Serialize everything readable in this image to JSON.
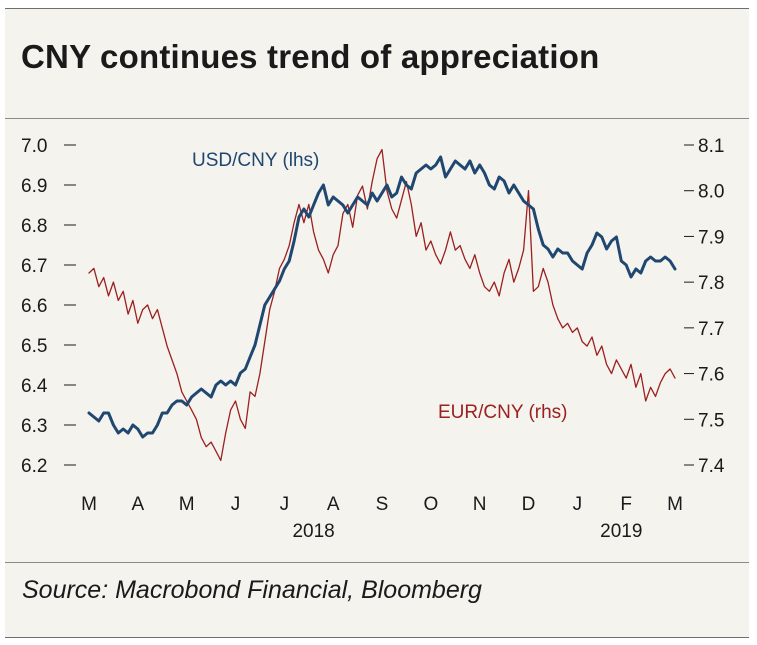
{
  "title": "CNY continues trend of appreciation",
  "source": "Source: Macrobond Financial, Bloomberg",
  "colors": {
    "usd": "#1f4770",
    "eur": "#9b2020",
    "background": "#f4f3ee"
  },
  "chart_data": {
    "type": "line",
    "title": "CNY continues trend of appreciation",
    "x_months": [
      "M",
      "A",
      "M",
      "J",
      "J",
      "A",
      "S",
      "O",
      "N",
      "D",
      "J",
      "F",
      "M"
    ],
    "x_years": [
      "2018",
      "2019"
    ],
    "x_range": [
      "2018-03-01",
      "2019-03-08"
    ],
    "y_left": {
      "label": "USD/CNY (lhs)",
      "ylim": [
        6.2,
        7.0
      ],
      "ticks": [
        "7.0",
        "6.9",
        "6.8",
        "6.7",
        "6.6",
        "6.5",
        "6.4",
        "6.3",
        "6.2"
      ]
    },
    "y_right": {
      "label": "EUR/CNY (rhs)",
      "ylim": [
        7.4,
        8.1
      ],
      "ticks": [
        "8.1",
        "8.0",
        "7.9",
        "7.8",
        "7.7",
        "7.6",
        "7.5",
        "7.4"
      ]
    },
    "series": [
      {
        "name": "USD/CNY (lhs)",
        "axis": "left",
        "x": [
          0,
          0.1,
          0.2,
          0.3,
          0.4,
          0.5,
          0.6,
          0.7,
          0.8,
          0.9,
          1.0,
          1.1,
          1.2,
          1.3,
          1.4,
          1.5,
          1.6,
          1.7,
          1.8,
          1.9,
          2.0,
          2.1,
          2.2,
          2.3,
          2.4,
          2.5,
          2.6,
          2.7,
          2.8,
          2.9,
          3.0,
          3.1,
          3.2,
          3.3,
          3.4,
          3.5,
          3.6,
          3.7,
          3.8,
          3.9,
          4.0,
          4.1,
          4.2,
          4.3,
          4.4,
          4.5,
          4.6,
          4.7,
          4.8,
          4.9,
          5.0,
          5.1,
          5.2,
          5.3,
          5.4,
          5.5,
          5.6,
          5.7,
          5.8,
          5.9,
          6.0,
          6.1,
          6.2,
          6.3,
          6.4,
          6.5,
          6.6,
          6.7,
          6.8,
          6.9,
          7.0,
          7.1,
          7.2,
          7.3,
          7.4,
          7.5,
          7.6,
          7.7,
          7.8,
          7.9,
          8.0,
          8.1,
          8.2,
          8.3,
          8.4,
          8.5,
          8.6,
          8.7,
          8.8,
          8.9,
          9.0,
          9.1,
          9.2,
          9.3,
          9.4,
          9.5,
          9.6,
          9.7,
          9.8,
          9.9,
          10.0,
          10.1,
          10.2,
          10.3,
          10.4,
          10.5,
          10.6,
          10.7,
          10.8,
          10.9,
          11.0,
          11.1,
          11.2,
          11.3,
          11.4,
          11.5,
          11.6,
          11.7,
          11.8,
          11.9,
          12.0
        ],
        "values": [
          6.33,
          6.32,
          6.31,
          6.33,
          6.33,
          6.3,
          6.28,
          6.29,
          6.28,
          6.3,
          6.29,
          6.27,
          6.28,
          6.28,
          6.3,
          6.33,
          6.33,
          6.35,
          6.36,
          6.36,
          6.35,
          6.37,
          6.38,
          6.39,
          6.38,
          6.37,
          6.4,
          6.41,
          6.4,
          6.41,
          6.4,
          6.43,
          6.44,
          6.47,
          6.5,
          6.55,
          6.6,
          6.62,
          6.64,
          6.66,
          6.69,
          6.71,
          6.76,
          6.82,
          6.84,
          6.82,
          6.85,
          6.88,
          6.9,
          6.85,
          6.87,
          6.86,
          6.85,
          6.83,
          6.85,
          6.87,
          6.86,
          6.85,
          6.88,
          6.86,
          6.88,
          6.9,
          6.87,
          6.88,
          6.92,
          6.9,
          6.89,
          6.93,
          6.94,
          6.95,
          6.94,
          6.95,
          6.97,
          6.92,
          6.94,
          6.96,
          6.95,
          6.94,
          6.96,
          6.93,
          6.95,
          6.93,
          6.9,
          6.89,
          6.92,
          6.91,
          6.88,
          6.9,
          6.88,
          6.86,
          6.85,
          6.84,
          6.79,
          6.75,
          6.74,
          6.72,
          6.74,
          6.73,
          6.73,
          6.71,
          6.7,
          6.69,
          6.73,
          6.75,
          6.78,
          6.77,
          6.74,
          6.76,
          6.77,
          6.71,
          6.7,
          6.67,
          6.69,
          6.68,
          6.71,
          6.72,
          6.71,
          6.71,
          6.72,
          6.71,
          6.69
        ]
      },
      {
        "name": "EUR/CNY (rhs)",
        "axis": "right",
        "x": [
          0,
          0.1,
          0.2,
          0.3,
          0.4,
          0.5,
          0.6,
          0.7,
          0.8,
          0.9,
          1.0,
          1.1,
          1.2,
          1.3,
          1.4,
          1.5,
          1.6,
          1.7,
          1.8,
          1.9,
          2.0,
          2.1,
          2.2,
          2.3,
          2.4,
          2.5,
          2.6,
          2.7,
          2.8,
          2.9,
          3.0,
          3.1,
          3.2,
          3.3,
          3.4,
          3.5,
          3.6,
          3.7,
          3.8,
          3.9,
          4.0,
          4.1,
          4.2,
          4.3,
          4.4,
          4.5,
          4.6,
          4.7,
          4.8,
          4.9,
          5.0,
          5.1,
          5.2,
          5.3,
          5.4,
          5.5,
          5.6,
          5.7,
          5.8,
          5.9,
          6.0,
          6.1,
          6.2,
          6.3,
          6.4,
          6.5,
          6.6,
          6.7,
          6.8,
          6.9,
          7.0,
          7.1,
          7.2,
          7.3,
          7.4,
          7.5,
          7.6,
          7.7,
          7.8,
          7.9,
          8.0,
          8.1,
          8.2,
          8.3,
          8.4,
          8.5,
          8.6,
          8.7,
          8.8,
          8.9,
          9.0,
          9.1,
          9.2,
          9.3,
          9.4,
          9.5,
          9.6,
          9.7,
          9.8,
          9.9,
          10.0,
          10.1,
          10.2,
          10.3,
          10.4,
          10.5,
          10.6,
          10.7,
          10.8,
          10.9,
          11.0,
          11.1,
          11.2,
          11.3,
          11.4,
          11.5,
          11.6,
          11.7,
          11.8,
          11.9,
          12.0
        ],
        "values": [
          7.82,
          7.83,
          7.79,
          7.81,
          7.77,
          7.8,
          7.76,
          7.78,
          7.73,
          7.76,
          7.71,
          7.74,
          7.75,
          7.72,
          7.74,
          7.7,
          7.66,
          7.63,
          7.6,
          7.56,
          7.54,
          7.52,
          7.5,
          7.46,
          7.44,
          7.45,
          7.43,
          7.41,
          7.47,
          7.52,
          7.54,
          7.5,
          7.48,
          7.56,
          7.55,
          7.6,
          7.67,
          7.74,
          7.78,
          7.83,
          7.85,
          7.88,
          7.93,
          7.97,
          7.93,
          7.97,
          7.91,
          7.87,
          7.85,
          7.82,
          7.86,
          7.88,
          7.95,
          7.97,
          7.92,
          7.99,
          8.01,
          7.96,
          8.02,
          8.07,
          8.09,
          8.0,
          7.96,
          7.94,
          7.98,
          8.02,
          7.97,
          7.9,
          7.93,
          7.87,
          7.89,
          7.86,
          7.84,
          7.87,
          7.91,
          7.87,
          7.88,
          7.85,
          7.83,
          7.86,
          7.82,
          7.79,
          7.78,
          7.8,
          7.77,
          7.82,
          7.85,
          7.8,
          7.83,
          7.87,
          8.0,
          7.78,
          7.79,
          7.83,
          7.8,
          7.75,
          7.72,
          7.7,
          7.71,
          7.69,
          7.7,
          7.67,
          7.66,
          7.68,
          7.64,
          7.66,
          7.62,
          7.6,
          7.63,
          7.61,
          7.59,
          7.62,
          7.57,
          7.6,
          7.54,
          7.57,
          7.55,
          7.58,
          7.6,
          7.61,
          7.59
        ]
      }
    ]
  }
}
